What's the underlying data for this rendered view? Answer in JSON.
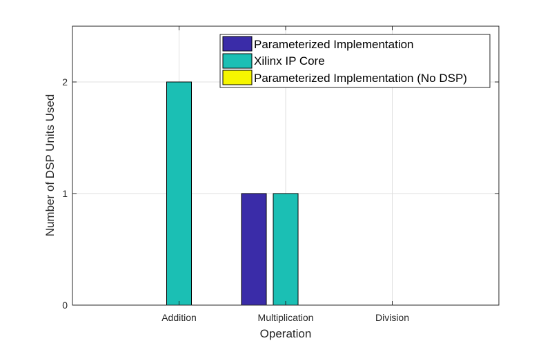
{
  "chart_data": {
    "type": "bar",
    "categories": [
      "Addition",
      "Multiplication",
      "Division"
    ],
    "series": [
      {
        "name": "Parameterized Implementation",
        "values": [
          0,
          1,
          0
        ],
        "color": "#3a2ca8"
      },
      {
        "name": "Xilinx IP Core",
        "values": [
          2,
          1,
          0
        ],
        "color": "#1bbfb4"
      },
      {
        "name": "Parameterized Implementation (No DSP)",
        "values": [
          0,
          0,
          0
        ],
        "color": "#f6f600"
      }
    ],
    "xlabel": "Operation",
    "ylabel": "Number of DSP Units Used",
    "ylim": [
      0,
      2.5
    ],
    "yticks": [
      "0",
      "1",
      "2"
    ],
    "grid": true,
    "legend_position": "top-right"
  }
}
